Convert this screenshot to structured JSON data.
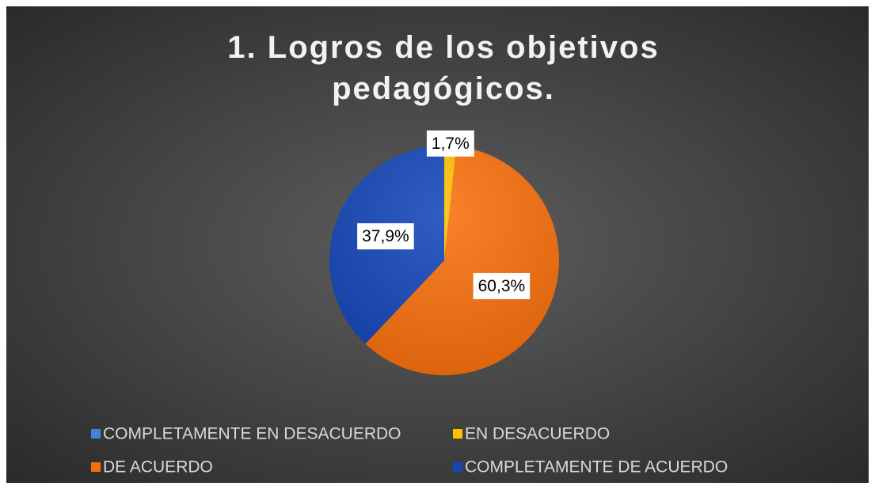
{
  "chart_data": {
    "type": "pie",
    "title": "1. Logros de los objetivos pedagógicos.",
    "categories": [
      "COMPLETAMENTE EN DESACUERDO",
      "EN DESACUERDO",
      "DE ACUERDO",
      "COMPLETAMENTE DE ACUERDO"
    ],
    "values": [
      0,
      1.7,
      60.3,
      37.9
    ],
    "value_labels": [
      null,
      "1,7%",
      "60,3%",
      "37,9%"
    ],
    "colors": [
      "#4a7fd8",
      "#ffc000",
      "#f8700c",
      "#1546b8"
    ],
    "legend": "bottom"
  }
}
